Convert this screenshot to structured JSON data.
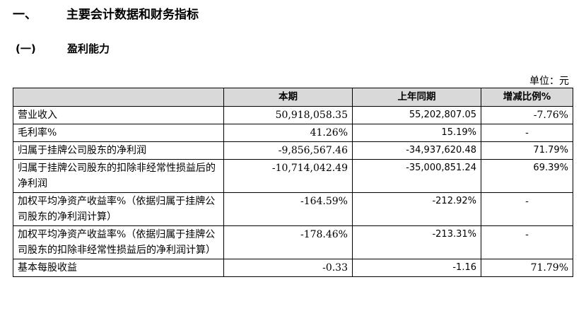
{
  "heading1": {
    "number": "一、",
    "text": "主要会计数据和财务指标"
  },
  "heading2": {
    "number": "(一)",
    "text": "盈利能力"
  },
  "unit_label": "单位：元",
  "table": {
    "headers": [
      "",
      "本期",
      "上年同期",
      "增减比例%"
    ],
    "rows": [
      {
        "label": "营业收入",
        "current": "50,918,058.35",
        "prior": "55,202,807.05",
        "change": "-7.76%"
      },
      {
        "label": "毛利率%",
        "current": "41.26%",
        "prior": "15.19%",
        "change": "-"
      },
      {
        "label": "归属于挂牌公司股东的净利润",
        "current": "-9,856,567.46",
        "prior": "-34,937,620.48",
        "change": "71.79%"
      },
      {
        "label": "归属于挂牌公司股东的扣除非经常性损益后的净利润",
        "current": "-10,714,042.49",
        "prior": "-35,000,851.24",
        "change": "69.39%"
      },
      {
        "label": "加权平均净资产收益率%（依据归属于挂牌公司股东的净利润计算）",
        "current": "-164.59%",
        "prior": "-212.92%",
        "change": "-"
      },
      {
        "label": "加权平均净资产收益率%（依据归属于挂牌公司股东的扣除非经常性损益后的净利润计算）",
        "current": "-178.46%",
        "prior": "-213.31%",
        "change": "-"
      },
      {
        "label": "基本每股收益",
        "current": "-0.33",
        "prior": "-1.16",
        "change": "71.79%"
      }
    ]
  }
}
